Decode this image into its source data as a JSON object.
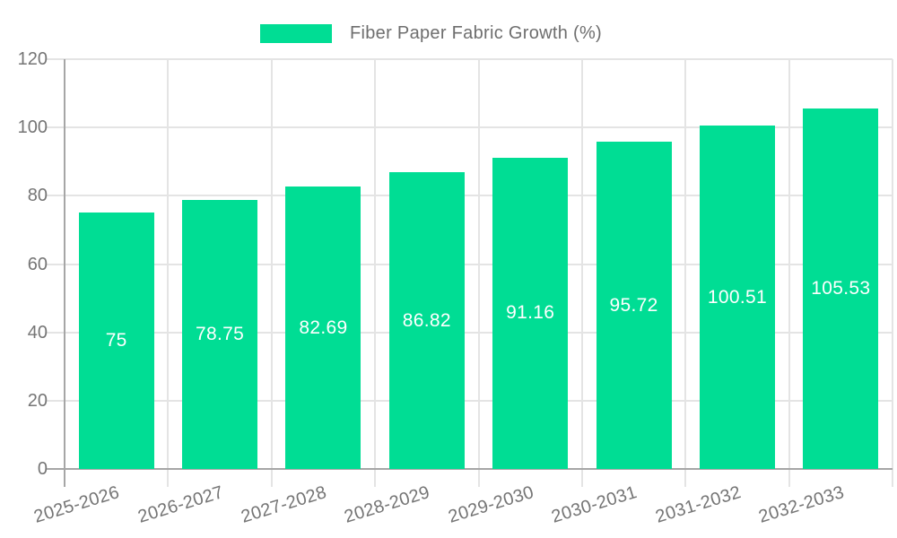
{
  "colors": {
    "bar": "#00DD94",
    "grid": "#e4e4e4",
    "axis": "#a6a6a6",
    "tick_label": "#757575",
    "value_label": "#ffffff",
    "legend_text": "#6e6e6e"
  },
  "chart_data": {
    "type": "bar",
    "title": "",
    "legend": "Fiber Paper Fabric Growth (%)",
    "legend_position": "top",
    "categories": [
      "2025-2026",
      "2026-2027",
      "2027-2028",
      "2028-2029",
      "2029-2030",
      "2030-2031",
      "2031-2032",
      "2032-2033"
    ],
    "values": [
      75,
      78.75,
      82.69,
      86.82,
      91.16,
      95.72,
      100.51,
      105.53
    ],
    "value_labels": [
      "75",
      "78.75",
      "82.69",
      "86.82",
      "91.16",
      "95.72",
      "100.51",
      "105.53"
    ],
    "xlabel": "",
    "ylabel": "",
    "ylim": [
      0,
      120
    ],
    "yticks": [
      0,
      20,
      40,
      60,
      80,
      100,
      120
    ],
    "grid": true
  }
}
